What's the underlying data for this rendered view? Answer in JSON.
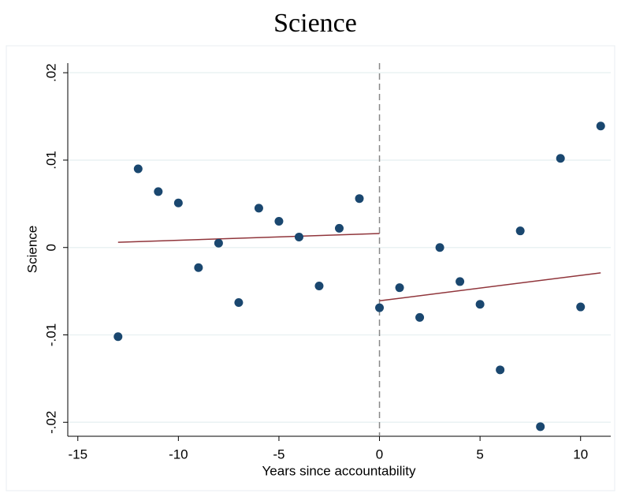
{
  "chart_data": {
    "type": "scatter",
    "title": "Science",
    "x_label": "Years since accountability",
    "y_label": "Science",
    "xlim": [
      -15.5,
      11.5
    ],
    "xticks": [
      -15,
      -10,
      -5,
      0,
      5,
      10
    ],
    "ylim": [
      -0.0216,
      0.0211
    ],
    "yticks": [
      {
        "value": -0.02,
        "label": "-.02"
      },
      {
        "value": -0.01,
        "label": "-.01"
      },
      0,
      {
        "value": 0.01,
        "label": ".01"
      },
      {
        "value": 0.02,
        "label": ".02"
      }
    ],
    "grid": true,
    "vline": 0,
    "points": {
      "color": "#1a476f",
      "x": [
        -13,
        -12,
        -11,
        -10,
        -9,
        -8,
        -7,
        -6,
        -5,
        -4,
        -3,
        -2,
        -1,
        0,
        1,
        2,
        3,
        4,
        5,
        6,
        7,
        8,
        9,
        10,
        11
      ],
      "y": [
        -0.0102,
        0.009,
        0.0064,
        0.0051,
        -0.0023,
        0.0005,
        -0.0063,
        0.0045,
        0.003,
        0.0012,
        -0.0044,
        0.0022,
        0.0056,
        -0.0069,
        -0.0046,
        -0.008,
        0.0,
        -0.0039,
        -0.0065,
        -0.014,
        0.0019,
        -0.0205,
        0.0102,
        -0.0068,
        0.0139
      ]
    },
    "fits": [
      {
        "color": "#90353b",
        "x": [
          -13,
          0
        ],
        "y": [
          0.0006,
          0.0016
        ]
      },
      {
        "color": "#90353b",
        "x": [
          0,
          11
        ],
        "y": [
          -0.0061,
          -0.0029
        ]
      }
    ]
  }
}
